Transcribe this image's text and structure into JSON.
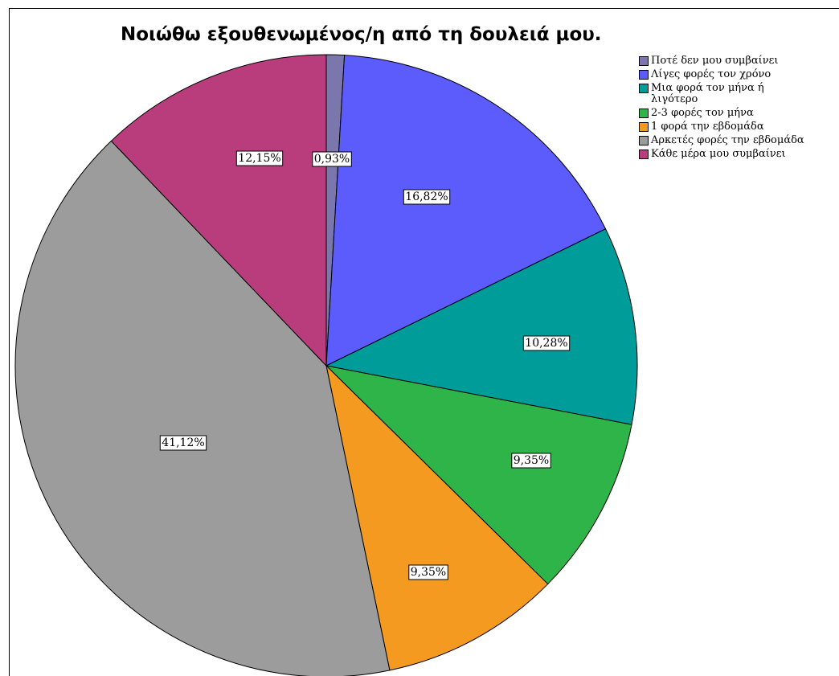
{
  "chart_data": {
    "type": "pie",
    "title": "Νοιώθω εξουθενωμένος/η από τη δουλειά μου.",
    "legend_position": "top-right",
    "categories": [
      "Ποτέ δεν μου συμβαίνει",
      "Λίγες φορές τον χρόνο",
      "Μια φορά τον μήνα ή λιγότερο",
      "2-3 φορές τον μήνα",
      "1 φορά την εβδομάδα",
      "Αρκετές φορές την εβδομάδα",
      "Κάθε μέρα μου συμβαίνει"
    ],
    "legend_lines": [
      [
        "Ποτέ δεν μου συμβαίνει"
      ],
      [
        "Λίγες φορές τον χρόνο"
      ],
      [
        "Μια φορά τον μήνα ή",
        "λιγότερο"
      ],
      [
        "2-3 φορές τον μήνα"
      ],
      [
        "1 φορά την εβδομάδα"
      ],
      [
        "Αρκετές φορές την εβδομάδα"
      ],
      [
        "Κάθε μέρα μου συμβαίνει"
      ]
    ],
    "values": [
      0.93,
      16.82,
      10.28,
      9.35,
      9.35,
      41.12,
      12.15
    ],
    "data_labels": [
      "0,93%",
      "16,82%",
      "10,28%",
      "9,35%",
      "9,35%",
      "41,12%",
      "12,15%"
    ],
    "colors": [
      "#7b77ad",
      "#5b5cfb",
      "#009c9a",
      "#2fb44a",
      "#f59a20",
      "#9c9c9c",
      "#b93c7c"
    ]
  }
}
